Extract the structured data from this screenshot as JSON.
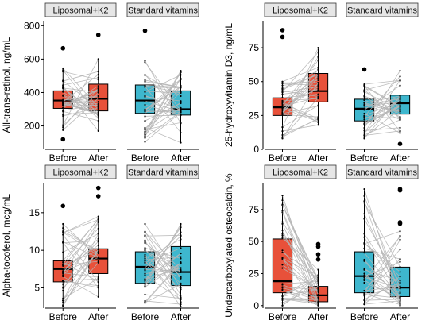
{
  "colors": {
    "liposomal": "#e8513a",
    "standard": "#3eb7ce",
    "line": "#b5b5b5",
    "point": "#000000",
    "strip": "#e6e6e6"
  },
  "chart_data": [
    {
      "type": "box",
      "ylabel": "All-trans-retinol, ng/mL",
      "ylim": [
        60,
        830
      ],
      "yticks": [
        200,
        400,
        600,
        800
      ],
      "categories": [
        "Before",
        "After"
      ],
      "panels": [
        {
          "name": "Liposomal+K2",
          "boxes": [
            {
              "q1": 305,
              "median": 352,
              "q3": 410,
              "whisker_low": 175,
              "whisker_high": 545,
              "outliers": [
                120,
                665
              ]
            },
            {
              "q1": 290,
              "median": 362,
              "q3": 450,
              "whisker_low": 170,
              "whisker_high": 600,
              "outliers": [
                745
              ]
            }
          ]
        },
        {
          "name": "Standard vitamins",
          "boxes": [
            {
              "q1": 275,
              "median": 352,
              "q3": 445,
              "whisker_low": 105,
              "whisker_high": 590,
              "outliers": [
                770
              ]
            },
            {
              "q1": 265,
              "median": 300,
              "q3": 410,
              "whisker_low": 100,
              "whisker_high": 530,
              "outliers": []
            }
          ]
        }
      ]
    },
    {
      "type": "box",
      "ylabel": "25-hydroxyvitamin D3, ng/mL",
      "ylim": [
        0,
        95
      ],
      "yticks": [
        0,
        25,
        50,
        75
      ],
      "categories": [
        "Before",
        "After"
      ],
      "panels": [
        {
          "name": "Liposomal+K2",
          "boxes": [
            {
              "q1": 25,
              "median": 31,
              "q3": 38,
              "whisker_low": 8,
              "whisker_high": 50,
              "outliers": [
                83,
                88
              ]
            },
            {
              "q1": 35,
              "median": 43,
              "q3": 56,
              "whisker_low": 18,
              "whisker_high": 75,
              "outliers": []
            }
          ]
        },
        {
          "name": "Standard vitamins",
          "boxes": [
            {
              "q1": 21,
              "median": 30,
              "q3": 37,
              "whisker_low": 8,
              "whisker_high": 48,
              "outliers": [
                59
              ]
            },
            {
              "q1": 26,
              "median": 34,
              "q3": 40,
              "whisker_low": 12,
              "whisker_high": 58,
              "outliers": [
                4
              ]
            }
          ]
        }
      ]
    },
    {
      "type": "box",
      "ylabel": "Alpha-tocoferol, mcg/mL",
      "ylim": [
        2.3,
        19
      ],
      "yticks": [
        5,
        10,
        15
      ],
      "categories": [
        "Before",
        "After"
      ],
      "panels": [
        {
          "name": "Liposomal+K2",
          "boxes": [
            {
              "q1": 5.8,
              "median": 7.5,
              "q3": 8.6,
              "whisker_low": 2.6,
              "whisker_high": 13.5,
              "outliers": [
                15.9
              ]
            },
            {
              "q1": 6.9,
              "median": 8.9,
              "q3": 10.2,
              "whisker_low": 3.8,
              "whisker_high": 14.5,
              "outliers": [
                17.2,
                18.3
              ]
            }
          ]
        },
        {
          "name": "Standard vitamins",
          "boxes": [
            {
              "q1": 5.6,
              "median": 7.8,
              "q3": 9.8,
              "whisker_low": 3.0,
              "whisker_high": 13.5,
              "outliers": []
            },
            {
              "q1": 5.3,
              "median": 7.1,
              "q3": 10.5,
              "whisker_low": 2.5,
              "whisker_high": 13.5,
              "outliers": []
            }
          ]
        }
      ]
    },
    {
      "type": "box",
      "ylabel": "Undercarboxylated osteocalcin, %",
      "ylim": [
        -2,
        96
      ],
      "yticks": [
        0,
        25,
        50,
        75
      ],
      "categories": [
        "Before",
        "After"
      ],
      "panels": [
        {
          "name": "Liposomal+K2",
          "boxes": [
            {
              "q1": 10,
              "median": 19,
              "q3": 52,
              "whisker_low": 0,
              "whisker_high": 86,
              "outliers": []
            },
            {
              "q1": 3,
              "median": 8,
              "q3": 15,
              "whisker_low": 0,
              "whisker_high": 28,
              "outliers": [
                36,
                40,
                46,
                48
              ]
            }
          ]
        },
        {
          "name": "Standard vitamins",
          "boxes": [
            {
              "q1": 10,
              "median": 23,
              "q3": 42,
              "whisker_low": 1,
              "whisker_high": 91,
              "outliers": []
            },
            {
              "q1": 7,
              "median": 14,
              "q3": 30,
              "whisker_low": 0,
              "whisker_high": 58,
              "outliers": [
                64,
                65,
                90,
                91
              ]
            }
          ]
        }
      ]
    }
  ]
}
